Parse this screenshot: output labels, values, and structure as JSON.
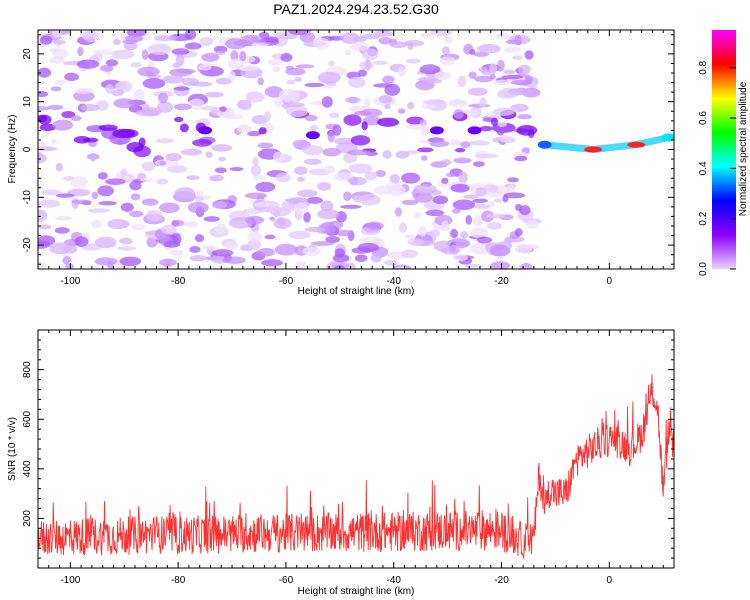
{
  "figure_title": "PAZ1.2024.294.23.52.G30",
  "chart_data": [
    {
      "type": "heatmap",
      "title": "PAZ1.2024.294.23.52.G30",
      "xlabel": "Height of straight line (km)",
      "ylabel": "Frequency (Hz)",
      "xlim": [
        -106,
        12
      ],
      "ylim": [
        -25,
        25
      ],
      "x_ticks": [
        -100,
        -80,
        -60,
        -40,
        -20,
        0
      ],
      "y_ticks": [
        -20,
        -10,
        0,
        10,
        20
      ],
      "colorbar": {
        "label": "Normalized spectral amplitude",
        "range": [
          0.0,
          0.95
        ],
        "ticks": [
          0.0,
          0.2,
          0.4,
          0.6,
          0.8
        ],
        "colors": [
          "#e9d3ff",
          "#8c00ff",
          "#0000ff",
          "#00ffff",
          "#00ff00",
          "#ffff00",
          "#ff0000",
          "#ff00ff"
        ]
      },
      "dominant_ridge": [
        {
          "x": -75,
          "y": 4,
          "value": 0.25
        },
        {
          "x": -55,
          "y": 3,
          "value": 0.22
        },
        {
          "x": -32,
          "y": 4,
          "value": 0.25
        },
        {
          "x": -25,
          "y": 4,
          "value": 0.25
        },
        {
          "x": -12,
          "y": 1,
          "value": 0.3
        },
        {
          "x": -3,
          "y": 0,
          "value": 0.9
        },
        {
          "x": 5,
          "y": 1,
          "value": 0.88
        },
        {
          "x": 11,
          "y": 2.5,
          "value": 0.4
        }
      ]
    },
    {
      "type": "line",
      "xlabel": "Height of straight line (km)",
      "ylabel": "SNR (10 * v/v)",
      "xlim": [
        -106,
        12
      ],
      "ylim": [
        0,
        960
      ],
      "x_ticks": [
        -100,
        -80,
        -60,
        -40,
        -20,
        0
      ],
      "y_ticks": [
        200,
        400,
        600,
        800
      ],
      "color": "#ff3030",
      "series": [
        {
          "x": [
            -106,
            -100,
            -95,
            -90,
            -85,
            -80,
            -75,
            -70,
            -65,
            -60,
            -55,
            -50,
            -45,
            -40,
            -35,
            -30,
            -25,
            -22,
            -20,
            -18,
            -16,
            -14,
            -13,
            -12,
            -11,
            -10,
            -8,
            -6,
            -4,
            -2,
            0,
            2,
            4,
            6,
            7,
            8,
            9,
            10,
            11,
            12
          ],
          "values": [
            120,
            125,
            128,
            130,
            135,
            132,
            135,
            138,
            140,
            140,
            142,
            142,
            145,
            145,
            148,
            150,
            150,
            155,
            150,
            130,
            110,
            120,
            380,
            250,
            320,
            300,
            300,
            440,
            470,
            500,
            520,
            510,
            480,
            540,
            620,
            720,
            640,
            300,
            560,
            480
          ]
        }
      ]
    }
  ]
}
